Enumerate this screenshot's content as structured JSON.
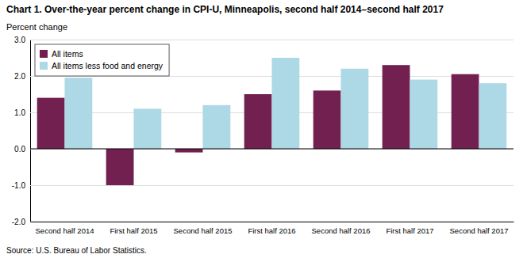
{
  "chart_data": {
    "type": "bar",
    "title": "Chart 1. Over-the-year percent change in CPI-U, Minneapolis, second half 2014–second  half 2017",
    "ylabel": "Percent change",
    "categories": [
      "Second half 2014",
      "First half 2015",
      "Second half 2015",
      "First half 2016",
      "Second half 2016",
      "First half 2017",
      "Second half 2017"
    ],
    "series": [
      {
        "name": "All items",
        "color": "#722050",
        "values": [
          1.4,
          -1.0,
          -0.1,
          1.5,
          1.6,
          2.3,
          2.05
        ]
      },
      {
        "name": "All items less food and energy",
        "color": "#add8e6",
        "values": [
          1.95,
          1.1,
          1.2,
          2.5,
          2.2,
          1.9,
          1.8
        ]
      }
    ],
    "ylim": [
      -2.0,
      3.0
    ],
    "yticks": [
      {
        "value": -2.0,
        "label": "-2.0"
      },
      {
        "value": -1.0,
        "label": "-1.0"
      },
      {
        "value": 0.0,
        "label": "0.0"
      },
      {
        "value": 1.0,
        "label": "1.0"
      },
      {
        "value": 2.0,
        "label": "2.0"
      },
      {
        "value": 3.0,
        "label": "3.0"
      }
    ],
    "grid": true,
    "legend": "upper left",
    "annotations": [
      "Source: U.S. Bureau of Labor Statistics."
    ]
  }
}
